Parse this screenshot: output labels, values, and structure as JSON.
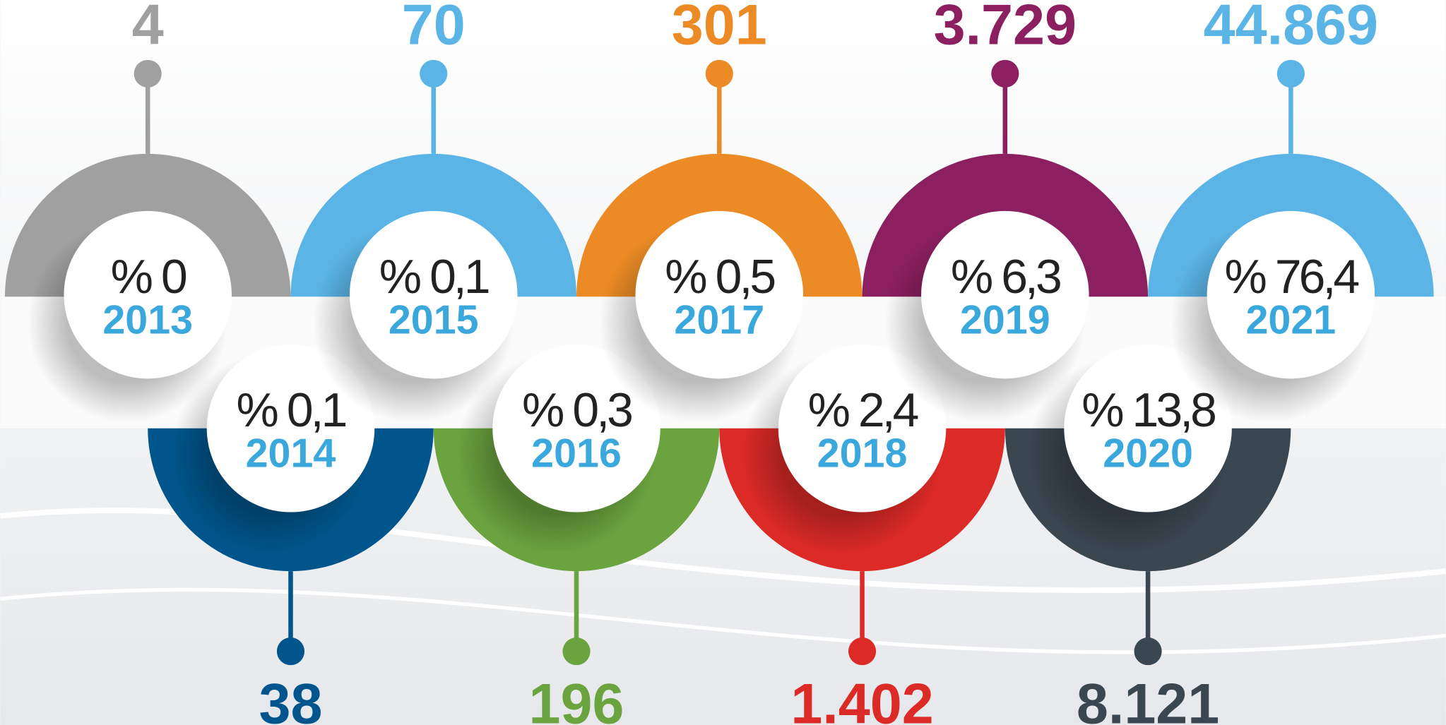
{
  "items": [
    {
      "year": "2013",
      "percent": "% 0",
      "count": "4",
      "color": "#a0a0a0"
    },
    {
      "year": "2014",
      "percent": "% 0,1",
      "count": "38",
      "color": "#00568c"
    },
    {
      "year": "2015",
      "percent": "% 0,1",
      "count": "70",
      "color": "#5ab4e5"
    },
    {
      "year": "2016",
      "percent": "% 0,3",
      "count": "196",
      "color": "#6ba43f"
    },
    {
      "year": "2017",
      "percent": "% 0,5",
      "count": "301",
      "color": "#ec8b25"
    },
    {
      "year": "2018",
      "percent": "% 2,4",
      "count": "1.402",
      "color": "#dc2a27"
    },
    {
      "year": "2019",
      "percent": "% 6,3",
      "count": "3.729",
      "color": "#8b1f5f"
    },
    {
      "year": "2020",
      "percent": "% 13,8",
      "count": "8.121",
      "color": "#3a4650"
    },
    {
      "year": "2021",
      "percent": "% 76,4",
      "count": "44.869",
      "color": "#5ab4e5"
    }
  ]
}
